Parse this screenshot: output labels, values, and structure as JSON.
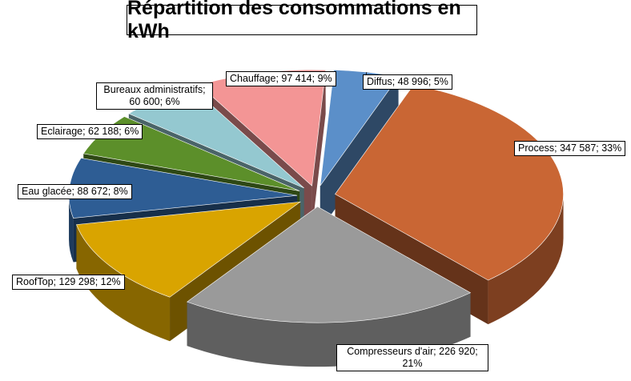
{
  "chart_data": {
    "type": "pie",
    "variant": "3d-exploded",
    "title": "Répartition des consommations en kWh",
    "unit": "kWh",
    "slices": [
      {
        "category": "Diffus",
        "value": 48996,
        "value_label": "48 996",
        "percent": "5%",
        "color": "#5b8fc9"
      },
      {
        "category": "Process",
        "value": 347587,
        "value_label": "347 587",
        "percent": "33%",
        "color": "#c96634"
      },
      {
        "category": "Compresseurs d'air",
        "value": 226920,
        "value_label": "226 920",
        "percent": "21%",
        "color": "#9a9a9a"
      },
      {
        "category": "RoofTop",
        "value": 129298,
        "value_label": "129 298",
        "percent": "12%",
        "color": "#d9a400"
      },
      {
        "category": "Eau glacée",
        "value": 88672,
        "value_label": "88 672",
        "percent": "8%",
        "color": "#2e5d94"
      },
      {
        "category": "Eclairage",
        "value": 62188,
        "value_label": "62 188",
        "percent": "6%",
        "color": "#5c8f2a"
      },
      {
        "category": "Bureaux administratifs",
        "value": 60600,
        "value_label": "60 600",
        "percent": "6%",
        "color": "#94c8d0"
      },
      {
        "category": "Chauffage",
        "value": 97414,
        "value_label": "97 414",
        "percent": "9%",
        "color": "#f39595"
      }
    ],
    "labels": [
      "Diffus; 48 996; 5%",
      "Process; 347 587; 33%",
      "Compresseurs d'air; 226 920; 21%",
      "RoofTop; 129 298; 12%",
      "Eau glacée; 88 672; 8%",
      "Eclairage; 62 188; 6%",
      "Bureaux administratifs; 60 600; 6%",
      "Chauffage; 97 414; 9%"
    ]
  }
}
